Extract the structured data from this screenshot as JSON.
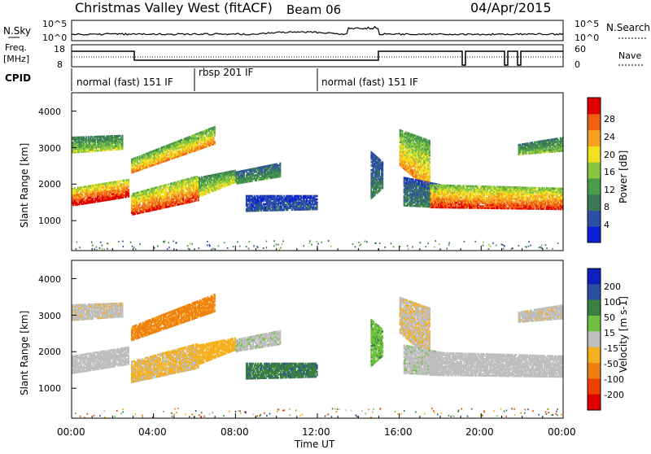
{
  "header": {
    "title": "Christmas Valley West (fitACF)",
    "beam": "Beam 06",
    "date": "04/Apr/2015"
  },
  "top_strip": {
    "nsky_label": "N.Sky",
    "nsky_ticks": [
      "10^5",
      "10^0"
    ],
    "nsearch_label": "N.Search",
    "nsearch_ticks": [
      "10^5",
      "10^0"
    ],
    "freq_label_1": "Freq.",
    "freq_label_2": "[MHz]",
    "freq_ticks": [
      "18",
      "8"
    ],
    "nave_label": "Nave",
    "nave_ticks": [
      "60",
      "0"
    ],
    "cpid_label": "CPID",
    "cpid_segments": [
      {
        "label": "normal (fast) 151 IF",
        "start_hour": 0,
        "end_hour": 6
      },
      {
        "label": "rbsp 201 IF",
        "start_hour": 6,
        "end_hour": 12
      },
      {
        "label": "normal (fast) 151 IF",
        "start_hour": 12,
        "end_hour": 24
      }
    ]
  },
  "x_axis": {
    "label": "Time UT",
    "ticks": [
      "00:00",
      "04:00",
      "08:00",
      "12:00",
      "16:00",
      "20:00",
      "00:00"
    ],
    "range_hours": [
      0,
      24
    ]
  },
  "power_panel": {
    "ylabel": "Slant Range [km]",
    "yticks": [
      "1000",
      "2000",
      "3000",
      "4000"
    ],
    "colorbar_label": "Power [dB]",
    "colorbar_ticks": [
      "4",
      "8",
      "12",
      "16",
      "20",
      "24",
      "28"
    ],
    "colors": [
      "#0a1fd6",
      "#2e4fa6",
      "#3a7a58",
      "#4a9b4a",
      "#88c640",
      "#f0e020",
      "#f5a020",
      "#f06010",
      "#e00000"
    ]
  },
  "velocity_panel": {
    "ylabel": "Slant Range [km]",
    "yticks": [
      "1000",
      "2000",
      "3000",
      "4000"
    ],
    "colorbar_label": "Velocity [m s-1]",
    "colorbar_ticks": [
      "200",
      "100",
      "50",
      "15",
      "-15",
      "-50",
      "-100",
      "-200"
    ],
    "colors": [
      "#1020c0",
      "#2a4fa0",
      "#3a8040",
      "#70c040",
      "#bebebe",
      "#f5b020",
      "#f08010",
      "#f04000",
      "#e00000"
    ]
  },
  "chart_data": {
    "type": "heatmap",
    "x_range_hours": [
      0,
      24
    ],
    "y_range_km": [
      180,
      4500
    ],
    "power_db_range": [
      0,
      30
    ],
    "velocity_range": [
      -250,
      250
    ],
    "segments": [
      {
        "t0": 0.0,
        "t1": 2.8,
        "lo0": 1400,
        "lo1": 1650,
        "hi0": 1900,
        "hi1": 2150,
        "db": 26,
        "vel": 0
      },
      {
        "t0": 0.0,
        "t1": 2.5,
        "lo0": 2850,
        "lo1": 2950,
        "hi0": 3300,
        "hi1": 3350,
        "db": 14,
        "vel": -5
      },
      {
        "t0": 2.9,
        "t1": 6.2,
        "lo0": 1150,
        "lo1": 1550,
        "hi0": 1750,
        "hi1": 2250,
        "db": 24,
        "vel": -20
      },
      {
        "t0": 2.9,
        "t1": 7.0,
        "lo0": 2300,
        "lo1": 3100,
        "hi0": 2700,
        "hi1": 3600,
        "db": 20,
        "vel": -60
      },
      {
        "t0": 6.2,
        "t1": 8.0,
        "lo0": 1650,
        "lo1": 2050,
        "hi0": 2200,
        "hi1": 2400,
        "db": 16,
        "vel": -30
      },
      {
        "t0": 8.0,
        "t1": 10.2,
        "lo0": 2000,
        "lo1": 2200,
        "hi0": 2350,
        "hi1": 2600,
        "db": 10,
        "vel": 5
      },
      {
        "t0": 8.5,
        "t1": 12.0,
        "lo0": 1250,
        "lo1": 1300,
        "hi0": 1700,
        "hi1": 1700,
        "db": 5,
        "vel": 90
      },
      {
        "t0": 14.6,
        "t1": 15.2,
        "lo0": 1600,
        "lo1": 1900,
        "hi0": 2900,
        "hi1": 2600,
        "db": 8,
        "vel": 40
      },
      {
        "t0": 16.0,
        "t1": 17.5,
        "lo0": 2500,
        "lo1": 1800,
        "hi0": 3500,
        "hi1": 3200,
        "db": 20,
        "vel": -10
      },
      {
        "t0": 16.2,
        "t1": 18.0,
        "lo0": 1400,
        "lo1": 1350,
        "hi0": 2200,
        "hi1": 2000,
        "db": 8,
        "vel": 5
      },
      {
        "t0": 17.5,
        "t1": 24.0,
        "lo0": 1350,
        "lo1": 1300,
        "hi0": 2000,
        "hi1": 1900,
        "db": 24,
        "vel": 0
      },
      {
        "t0": 21.8,
        "t1": 24.0,
        "lo0": 2800,
        "lo1": 2900,
        "hi0": 3100,
        "hi1": 3300,
        "db": 13,
        "vel": -5
      }
    ]
  }
}
